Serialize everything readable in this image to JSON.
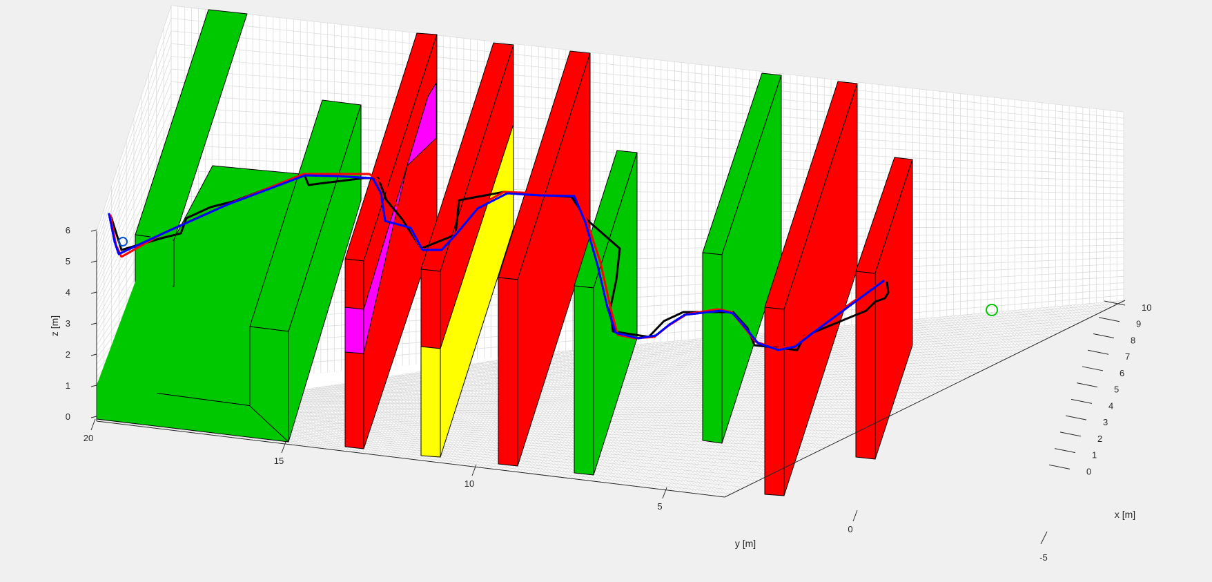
{
  "chart_data": {
    "type": "3d-line",
    "title": "",
    "xlabel": "x [m]",
    "ylabel": "y [m]",
    "zlabel": "z [m]",
    "xlim": [
      -5,
      10
    ],
    "ylim": [
      -3,
      21
    ],
    "zlim": [
      0,
      6
    ],
    "x_ticks": [
      "-5",
      "0",
      "1",
      "2",
      "3",
      "4",
      "5",
      "6",
      "7",
      "8",
      "9",
      "10"
    ],
    "y_ticks": [
      "0",
      "5",
      "10",
      "15",
      "20"
    ],
    "z_ticks": [
      "0",
      "1",
      "2",
      "3",
      "4",
      "5",
      "6"
    ],
    "grid": true,
    "obstacle_colors": {
      "green": "#00c800",
      "red": "#ff0000",
      "yellow": "#ffff00",
      "magenta": "#ff00ff"
    },
    "series": [
      {
        "color": "#000000",
        "style": "solid",
        "points": [
          [
            161,
            314
          ],
          [
            176,
            362
          ],
          [
            234,
            345
          ],
          [
            262,
            338
          ],
          [
            270,
            316
          ],
          [
            305,
            300
          ],
          [
            337,
            292
          ],
          [
            441,
            253
          ],
          [
            447,
            268
          ],
          [
            470,
            265
          ],
          [
            527,
            258
          ],
          [
            548,
            258
          ],
          [
            560,
            290
          ],
          [
            583,
            318
          ],
          [
            610,
            360
          ],
          [
            660,
            340
          ],
          [
            665,
            290
          ],
          [
            730,
            278
          ],
          [
            780,
            282
          ],
          [
            828,
            285
          ],
          [
            850,
            318
          ],
          [
            898,
            360
          ],
          [
            893,
            405
          ],
          [
            884,
            448
          ],
          [
            888,
            480
          ],
          [
            940,
            488
          ],
          [
            962,
            465
          ],
          [
            990,
            452
          ],
          [
            1062,
            452
          ],
          [
            1083,
            475
          ],
          [
            1093,
            500
          ],
          [
            1155,
            507
          ],
          [
            1165,
            487
          ],
          [
            1255,
            450
          ],
          [
            1268,
            437
          ],
          [
            1282,
            432
          ],
          [
            1287,
            424
          ],
          [
            1285,
            408
          ]
        ]
      },
      {
        "color": "#ff0000",
        "style": "dotted",
        "points": [
          [
            160,
            312
          ],
          [
            168,
            355
          ],
          [
            176,
            372
          ],
          [
            236,
            338
          ],
          [
            330,
            296
          ],
          [
            440,
            252
          ],
          [
            480,
            252
          ],
          [
            535,
            252
          ],
          [
            555,
            265
          ],
          [
            590,
            322
          ],
          [
            610,
            360
          ],
          [
            635,
            365
          ],
          [
            655,
            345
          ],
          [
            690,
            300
          ],
          [
            730,
            278
          ],
          [
            780,
            280
          ],
          [
            835,
            282
          ],
          [
            850,
            320
          ],
          [
            870,
            380
          ],
          [
            885,
            448
          ],
          [
            895,
            485
          ],
          [
            920,
            490
          ],
          [
            948,
            488
          ],
          [
            968,
            472
          ],
          [
            995,
            455
          ],
          [
            1040,
            448
          ],
          [
            1060,
            452
          ],
          [
            1075,
            470
          ],
          [
            1095,
            495
          ],
          [
            1125,
            505
          ],
          [
            1150,
            500
          ],
          [
            1175,
            480
          ],
          [
            1283,
            404
          ]
        ]
      },
      {
        "color": "#0000ff",
        "style": "dotted",
        "points": [
          [
            158,
            310
          ],
          [
            166,
            350
          ],
          [
            172,
            368
          ],
          [
            232,
            340
          ],
          [
            328,
            297
          ],
          [
            442,
            254
          ],
          [
            485,
            255
          ],
          [
            540,
            258
          ],
          [
            552,
            280
          ],
          [
            558,
            320
          ],
          [
            595,
            330
          ],
          [
            612,
            362
          ],
          [
            640,
            362
          ],
          [
            662,
            338
          ],
          [
            692,
            302
          ],
          [
            735,
            280
          ],
          [
            782,
            283
          ],
          [
            832,
            284
          ],
          [
            848,
            322
          ],
          [
            866,
            385
          ],
          [
            880,
            445
          ],
          [
            892,
            482
          ],
          [
            925,
            490
          ],
          [
            950,
            486
          ],
          [
            970,
            470
          ],
          [
            992,
            456
          ],
          [
            1045,
            450
          ],
          [
            1062,
            454
          ],
          [
            1078,
            472
          ],
          [
            1098,
            497
          ],
          [
            1128,
            507
          ],
          [
            1152,
            502
          ],
          [
            1178,
            482
          ],
          [
            1280,
            407
          ]
        ]
      }
    ],
    "start_marker": {
      "color": "#0050c8"
    },
    "goal_marker": {
      "color": "#00c800"
    }
  }
}
